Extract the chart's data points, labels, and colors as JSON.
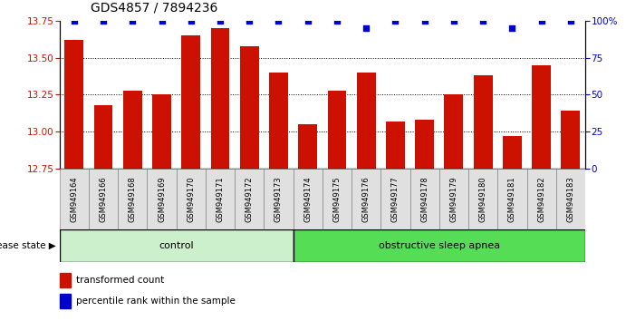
{
  "title": "GDS4857 / 7894236",
  "samples": [
    "GSM949164",
    "GSM949166",
    "GSM949168",
    "GSM949169",
    "GSM949170",
    "GSM949171",
    "GSM949172",
    "GSM949173",
    "GSM949174",
    "GSM949175",
    "GSM949176",
    "GSM949177",
    "GSM949178",
    "GSM949179",
    "GSM949180",
    "GSM949181",
    "GSM949182",
    "GSM949183"
  ],
  "bar_values": [
    13.62,
    13.18,
    13.28,
    13.25,
    13.65,
    13.7,
    13.58,
    13.4,
    13.05,
    13.28,
    13.4,
    13.07,
    13.08,
    13.25,
    13.38,
    12.97,
    13.45,
    13.14
  ],
  "percentile_values": [
    100,
    100,
    100,
    100,
    100,
    100,
    100,
    100,
    100,
    100,
    95,
    100,
    100,
    100,
    100,
    95,
    100,
    100
  ],
  "control_count": 8,
  "groups": [
    "control",
    "obstructive sleep apnea"
  ],
  "group_colors": [
    "#ccf0cc",
    "#55dd55"
  ],
  "bar_color": "#cc1100",
  "dot_color": "#0000cc",
  "ylim_left": [
    12.75,
    13.75
  ],
  "baseline": 12.75,
  "ylim_right": [
    0,
    100
  ],
  "yticks_left": [
    12.75,
    13.0,
    13.25,
    13.5,
    13.75
  ],
  "yticks_right": [
    0,
    25,
    50,
    75,
    100
  ],
  "grid_values": [
    13.0,
    13.25,
    13.5
  ],
  "background_color": "#ffffff",
  "title_fontsize": 10,
  "bar_width": 0.65,
  "legend_items": [
    "transformed count",
    "percentile rank within the sample"
  ],
  "legend_colors": [
    "#cc1100",
    "#0000cc"
  ],
  "disease_state_label": "disease state"
}
